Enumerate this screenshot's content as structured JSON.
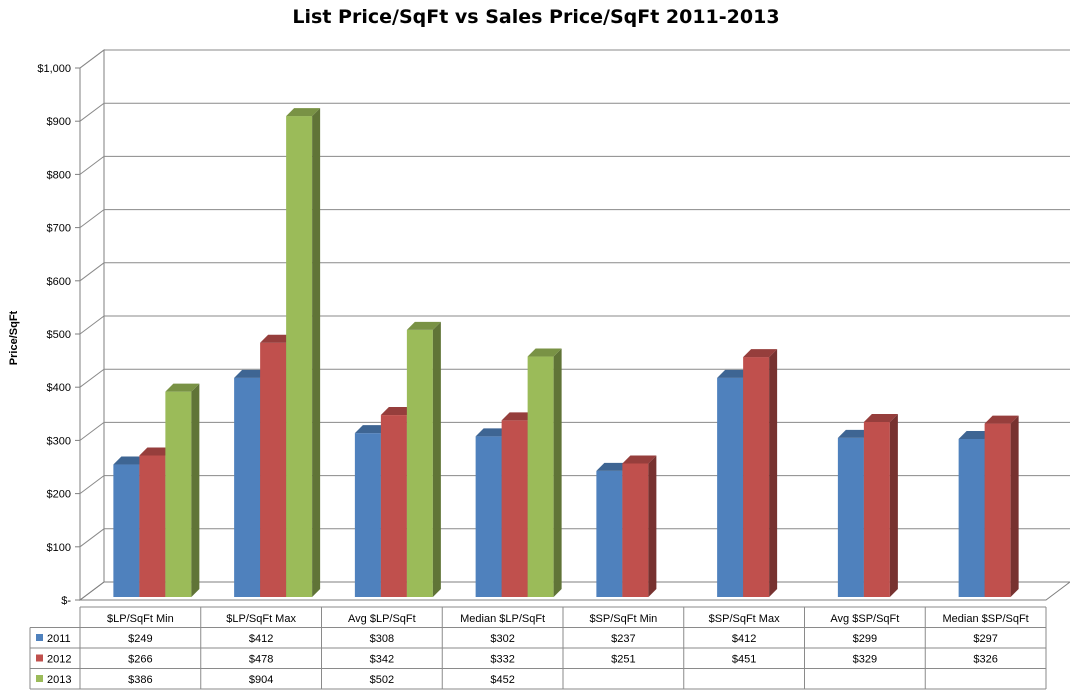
{
  "chart_data": {
    "type": "bar",
    "title": "List Price/SqFt vs Sales Price/SqFt 2011-2013",
    "ylabel": "Price/SqFt",
    "xlabel": "",
    "ylim": [
      0,
      1000
    ],
    "yticks": [
      {
        "value": 0,
        "label": "$-"
      },
      {
        "value": 100,
        "label": "$100"
      },
      {
        "value": 200,
        "label": "$200"
      },
      {
        "value": 300,
        "label": "$300"
      },
      {
        "value": 400,
        "label": "$400"
      },
      {
        "value": 500,
        "label": "$500"
      },
      {
        "value": 600,
        "label": "$600"
      },
      {
        "value": 700,
        "label": "$700"
      },
      {
        "value": 800,
        "label": "$800"
      },
      {
        "value": 900,
        "label": "$900"
      },
      {
        "value": 1000,
        "label": "$1,000"
      }
    ],
    "grid": true,
    "legend": "data-table",
    "categories": [
      "$LP/SqFt Min",
      "$LP/SqFt Max",
      "Avg $LP/SqFt",
      "Median $LP/SqFt",
      "$SP/SqFt Min",
      "$SP/SqFt Max",
      "Avg $SP/SqFt",
      "Median $SP/SqFt"
    ],
    "series": [
      {
        "name": "2011",
        "color": "#4f81bd",
        "values": [
          249,
          412,
          308,
          302,
          237,
          412,
          299,
          297
        ],
        "labels": [
          "$249",
          "$412",
          "$308",
          "$302",
          "$237",
          "$412",
          "$299",
          "$297"
        ]
      },
      {
        "name": "2012",
        "color": "#c0504d",
        "values": [
          266,
          478,
          342,
          332,
          251,
          451,
          329,
          326
        ],
        "labels": [
          "$266",
          "$478",
          "$342",
          "$332",
          "$251",
          "$451",
          "$329",
          "$326"
        ]
      },
      {
        "name": "2013",
        "color": "#9bbb59",
        "values": [
          386,
          904,
          502,
          452,
          null,
          null,
          null,
          null
        ],
        "labels": [
          "$386",
          "$904",
          "$502",
          "$452",
          "",
          "",
          "",
          ""
        ]
      }
    ]
  }
}
